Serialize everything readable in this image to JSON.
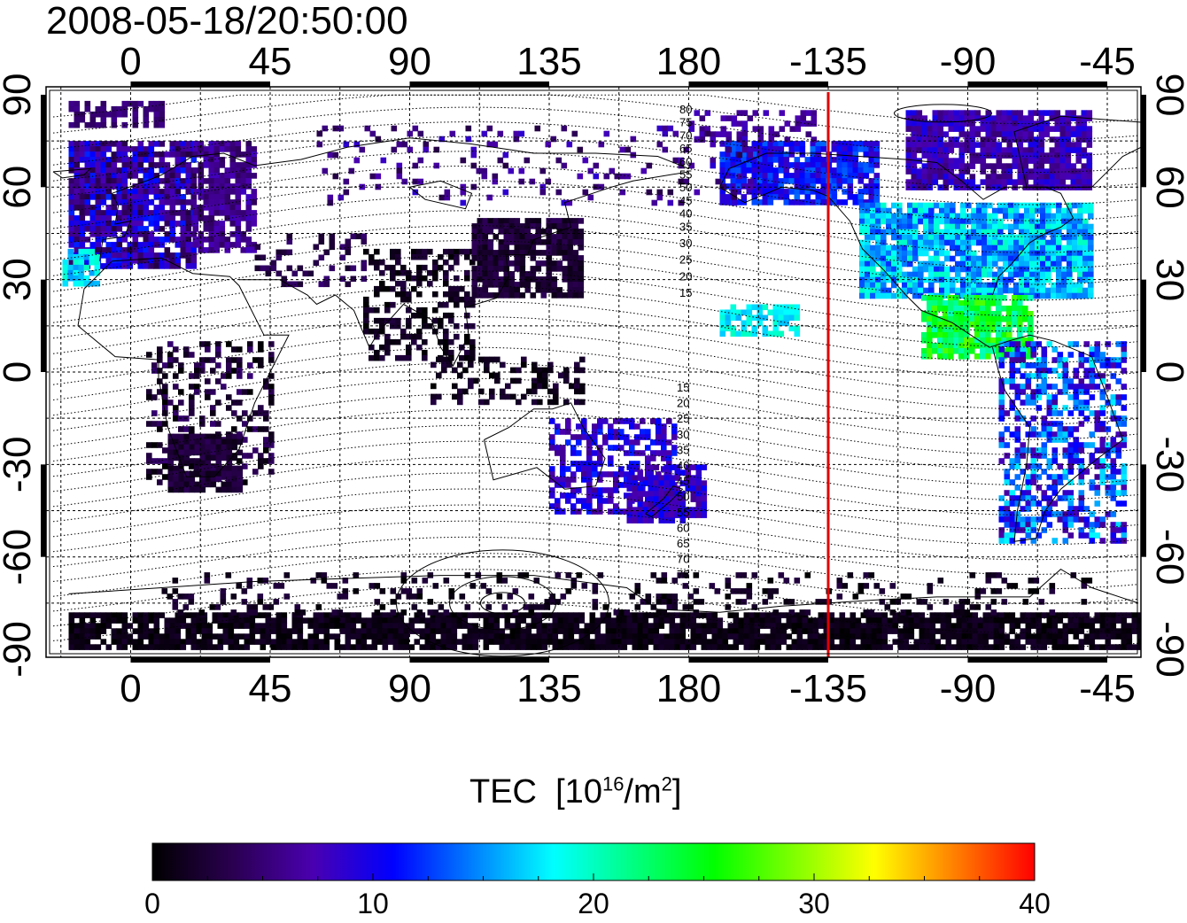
{
  "title": "2008-05-18/20:50:00",
  "map": {
    "top_lon_labels": [
      "0",
      "45",
      "90",
      "135",
      "180",
      "-135",
      "-90",
      "-45"
    ],
    "bottom_lon_labels": [
      "0",
      "45",
      "90",
      "135",
      "180",
      "-135",
      "-90",
      "-45"
    ],
    "left_lat_labels": [
      "90",
      "60",
      "30",
      "0",
      "-30",
      "-60",
      "-90"
    ],
    "right_lat_labels": [
      "90",
      "60",
      "30",
      "0",
      "-30",
      "-60",
      "-90"
    ],
    "lon_ticks": [
      0,
      45,
      90,
      135,
      180,
      225,
      270,
      315
    ],
    "lat_ticks": [
      90,
      60,
      30,
      0,
      -30,
      -60,
      -90
    ],
    "lon_range": [
      -25,
      325
    ],
    "lat_range": [
      -92,
      92
    ],
    "terminator_line": {
      "lon": -135,
      "color": "#e00000"
    },
    "contour_labels_north": [
      "80",
      "75",
      "70",
      "65",
      "60",
      "55",
      "50",
      "45",
      "40",
      "35",
      "30",
      "25",
      "20",
      "15"
    ],
    "contour_labels_south": [
      "15",
      "20",
      "25",
      "30",
      "35",
      "40",
      "45",
      "50",
      "55",
      "60",
      "65",
      "70",
      "75"
    ]
  },
  "colorbar": {
    "title": "TEC",
    "unit_base": "[10",
    "unit_exp": "16",
    "unit_mid": "/m",
    "unit_exp2": "2",
    "unit_end": "]",
    "ticks": [
      "0",
      "10",
      "20",
      "30",
      "40"
    ],
    "range": [
      0,
      40
    ],
    "colors": [
      "#000000",
      "#2a0050",
      "#4a00b0",
      "#0000ff",
      "#0080ff",
      "#00ffff",
      "#00ff80",
      "#00ff00",
      "#80ff00",
      "#ffff00",
      "#ff8000",
      "#ff0000"
    ]
  }
}
